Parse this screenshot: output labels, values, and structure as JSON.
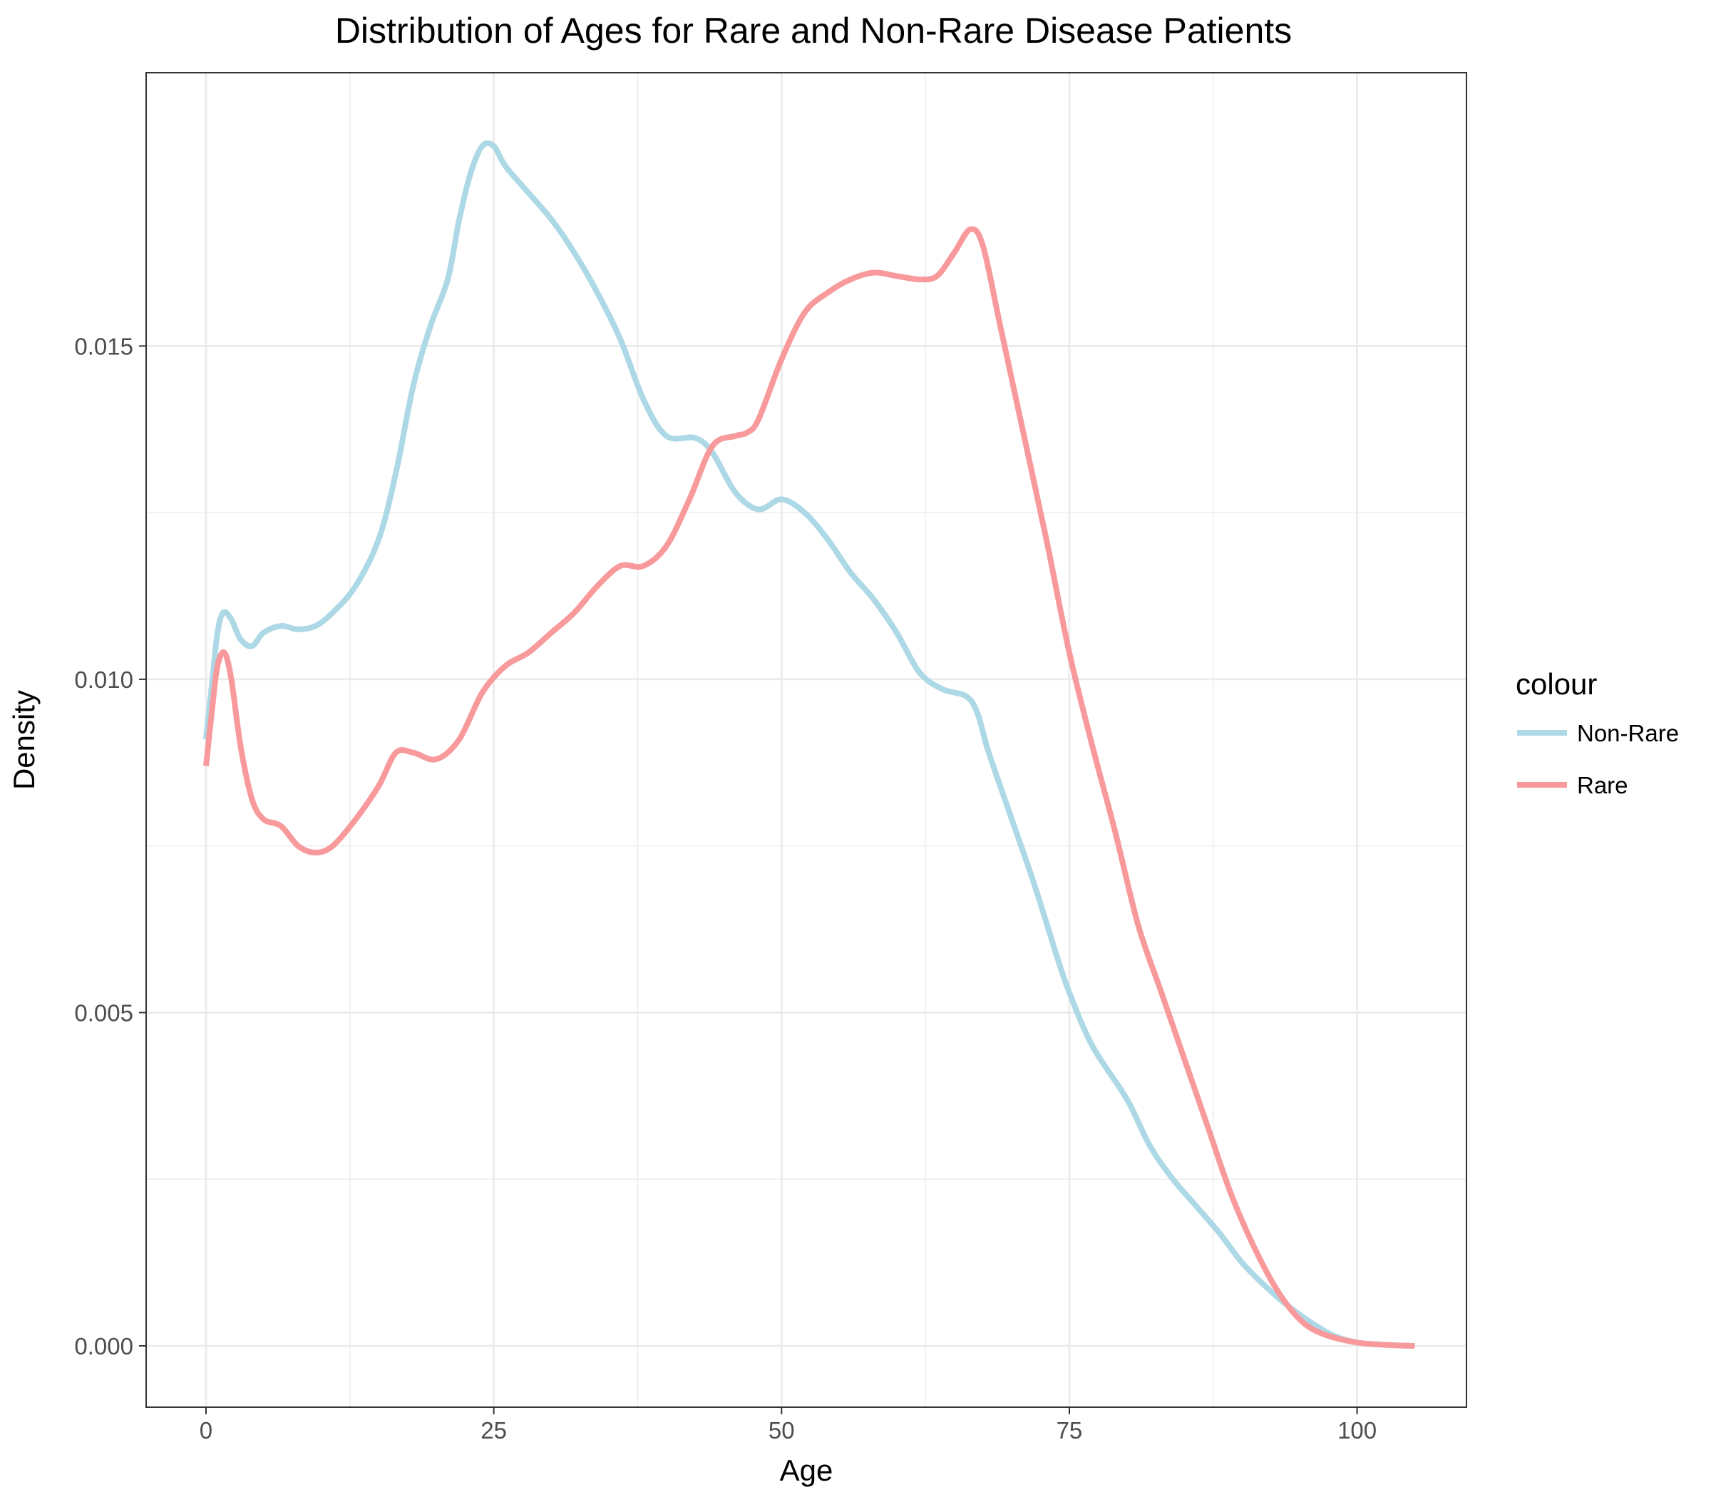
{
  "chart_data": {
    "type": "line",
    "title": "Distribution of Ages for Rare and Non-Rare Disease Patients",
    "xlabel": "Age",
    "ylabel": "Density",
    "xlim": [
      -5.2,
      109.5
    ],
    "ylim": [
      -0.00092,
      0.0191
    ],
    "x_ticks": [
      0,
      25,
      50,
      75,
      100
    ],
    "x_tick_labels": [
      "0",
      "25",
      "50",
      "75",
      "100"
    ],
    "y_ticks": [
      0.0,
      0.005,
      0.01,
      0.015
    ],
    "y_tick_labels": [
      "0.000",
      "0.005",
      "0.010",
      "0.015"
    ],
    "grid": true,
    "legend": {
      "title": "colour",
      "position": "right",
      "entries": [
        "Non-Rare",
        "Rare"
      ]
    },
    "series": [
      {
        "name": "Non-Rare",
        "color": "#add8e6",
        "points": [
          [
            0,
            0.0091
          ],
          [
            0.5,
            0.0099
          ],
          [
            1,
            0.0107
          ],
          [
            1.5,
            0.011
          ],
          [
            2.2,
            0.0109
          ],
          [
            3,
            0.0106
          ],
          [
            4,
            0.0105
          ],
          [
            5,
            0.0107
          ],
          [
            6.5,
            0.0108
          ],
          [
            8,
            0.01075
          ],
          [
            9.5,
            0.0108
          ],
          [
            11,
            0.011
          ],
          [
            13,
            0.0114
          ],
          [
            15,
            0.0121
          ],
          [
            16.5,
            0.0131
          ],
          [
            18,
            0.0144
          ],
          [
            19.5,
            0.0153
          ],
          [
            21,
            0.016
          ],
          [
            22,
            0.0169
          ],
          [
            23,
            0.0176
          ],
          [
            24,
            0.018
          ],
          [
            25,
            0.018
          ],
          [
            26,
            0.0177
          ],
          [
            28,
            0.0173
          ],
          [
            30,
            0.0169
          ],
          [
            32,
            0.0164
          ],
          [
            34,
            0.0158
          ],
          [
            36,
            0.0151
          ],
          [
            38,
            0.0142
          ],
          [
            40,
            0.01365
          ],
          [
            42.5,
            0.01362
          ],
          [
            44,
            0.0134
          ],
          [
            46,
            0.0128
          ],
          [
            48,
            0.01255
          ],
          [
            50,
            0.0127
          ],
          [
            52,
            0.0125
          ],
          [
            54,
            0.0121
          ],
          [
            56,
            0.0116
          ],
          [
            58,
            0.0112
          ],
          [
            60,
            0.0107
          ],
          [
            62,
            0.0101
          ],
          [
            64,
            0.00985
          ],
          [
            66,
            0.00975
          ],
          [
            67,
            0.0095
          ],
          [
            68,
            0.0089
          ],
          [
            70,
            0.0079
          ],
          [
            72,
            0.0069
          ],
          [
            74,
            0.0058
          ],
          [
            75,
            0.0053
          ],
          [
            77,
            0.0045
          ],
          [
            80,
            0.0037
          ],
          [
            82,
            0.003
          ],
          [
            84,
            0.0025
          ],
          [
            86,
            0.0021
          ],
          [
            88,
            0.0017
          ],
          [
            90,
            0.00125
          ],
          [
            92,
            0.0009
          ],
          [
            94,
            0.0006
          ],
          [
            96,
            0.00035
          ],
          [
            98,
            0.00015
          ],
          [
            100,
            5e-05
          ],
          [
            102,
            2e-05
          ],
          [
            105,
            0.0
          ]
        ]
      },
      {
        "name": "Rare",
        "color": "#f8999b",
        "points": [
          [
            0,
            0.0087
          ],
          [
            0.5,
            0.0095
          ],
          [
            1,
            0.0102
          ],
          [
            1.6,
            0.0104
          ],
          [
            2.2,
            0.01
          ],
          [
            3,
            0.009
          ],
          [
            4,
            0.0082
          ],
          [
            5,
            0.0079
          ],
          [
            6.5,
            0.0078
          ],
          [
            8,
            0.0075
          ],
          [
            9.5,
            0.0074
          ],
          [
            11,
            0.0075
          ],
          [
            13,
            0.0079
          ],
          [
            15,
            0.0084
          ],
          [
            16.5,
            0.0089
          ],
          [
            18,
            0.0089
          ],
          [
            20,
            0.0088
          ],
          [
            22,
            0.0091
          ],
          [
            24,
            0.0098
          ],
          [
            26,
            0.0102
          ],
          [
            28,
            0.0104
          ],
          [
            30,
            0.0107
          ],
          [
            32,
            0.011
          ],
          [
            34,
            0.0114
          ],
          [
            36,
            0.0117
          ],
          [
            38,
            0.0117
          ],
          [
            40,
            0.012
          ],
          [
            42,
            0.0127
          ],
          [
            44,
            0.0135
          ],
          [
            46,
            0.01365
          ],
          [
            47,
            0.0137
          ],
          [
            48,
            0.0139
          ],
          [
            50,
            0.0148
          ],
          [
            52,
            0.0155
          ],
          [
            54,
            0.0158
          ],
          [
            56,
            0.016
          ],
          [
            58,
            0.0161
          ],
          [
            60,
            0.01605
          ],
          [
            62,
            0.016
          ],
          [
            63.5,
            0.01605
          ],
          [
            65,
            0.0164
          ],
          [
            66.4,
            0.01675
          ],
          [
            67.5,
            0.0165
          ],
          [
            69,
            0.0153
          ],
          [
            71,
            0.0137
          ],
          [
            73,
            0.0121
          ],
          [
            75,
            0.0104
          ],
          [
            77,
            0.009
          ],
          [
            79,
            0.0077
          ],
          [
            81,
            0.0063
          ],
          [
            83,
            0.0053
          ],
          [
            85,
            0.0043
          ],
          [
            87,
            0.0033
          ],
          [
            89,
            0.0023
          ],
          [
            91,
            0.0015
          ],
          [
            93,
            0.00085
          ],
          [
            95,
            0.0004
          ],
          [
            97,
            0.00018
          ],
          [
            100,
            5e-05
          ],
          [
            103,
            1e-05
          ],
          [
            105,
            0.0
          ]
        ]
      }
    ]
  }
}
